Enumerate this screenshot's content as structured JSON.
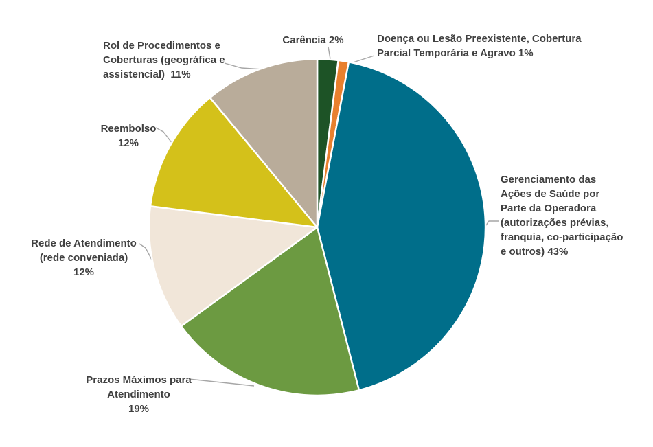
{
  "chart_data": {
    "type": "pie",
    "title": "",
    "unit": "%",
    "start_angle_deg": 0,
    "direction": "clockwise",
    "legend_position": "none",
    "background": "#ffffff",
    "label_color": "#404040",
    "leader_line_color": "#a6a6a6",
    "slice_border_color": "#ffffff",
    "slices": [
      {
        "name": "Carência",
        "value": 2,
        "color": "#1d5326",
        "callout": "Carência 2%"
      },
      {
        "name": "Doença ou Lesão Preexistente, Cobertura Parcial Temporária e Agravo",
        "value": 1,
        "color": "#e8802e",
        "callout": "Doença ou Lesão Preexistente, Cobertura\nParcial Temporária e Agravo 1%"
      },
      {
        "name": "Gerenciamento das Ações de Saúde por Parte da Operadora (autorizações prévias, franquia, co-participação e outros)",
        "value": 43,
        "color": "#006e8a",
        "callout": "Gerenciamento das\nAções de Saúde por\nParte da Operadora\n(autorizações prévias,\nfranquia, co-participação\ne outros) 43%"
      },
      {
        "name": "Prazos Máximos para Atendimento",
        "value": 19,
        "color": "#6c9a41",
        "callout": "Prazos Máximos para\nAtendimento\n19%"
      },
      {
        "name": "Rede de Atendimento (rede conveniada)",
        "value": 12,
        "color": "#f1e6d9",
        "callout": "Rede de Atendimento\n(rede conveniada)\n12%"
      },
      {
        "name": "Reembolso",
        "value": 12,
        "color": "#d4c11a",
        "callout": "Reembolso\n12%"
      },
      {
        "name": "Rol de Procedimentos e Coberturas (geográfica e assistencial)",
        "value": 11,
        "color": "#b9ac9a",
        "callout": "Rol de Procedimentos e\nCoberturas (geográfica e\nassistencial)  11%"
      }
    ]
  }
}
